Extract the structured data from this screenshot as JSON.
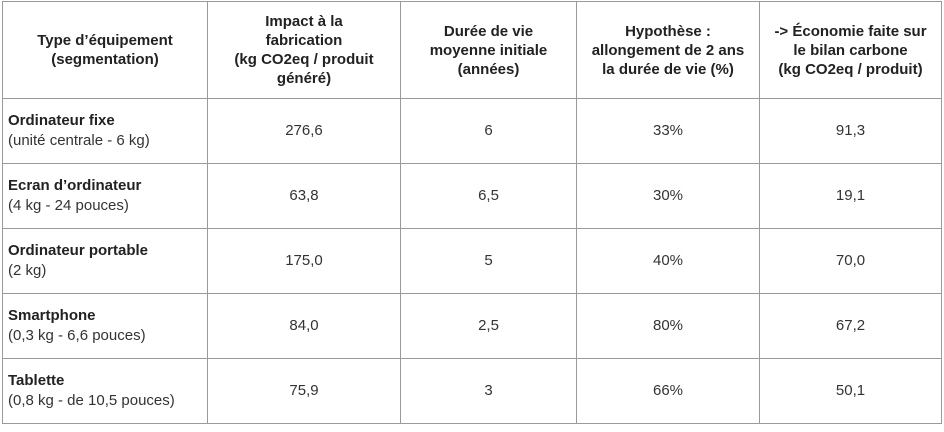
{
  "table": {
    "headers": [
      [
        "Type d’équipement",
        "(segmentation)"
      ],
      [
        "Impact à la",
        "fabrication",
        "(kg CO2eq / produit",
        "généré)"
      ],
      [
        "Durée de vie",
        "moyenne initiale",
        "(années)"
      ],
      [
        "Hypothèse :",
        "allongement de 2 ans",
        "la durée de vie (%)"
      ],
      [
        "-> Économie faite sur",
        "le bilan carbone",
        "(kg CO2eq / produit)"
      ]
    ],
    "rows": [
      {
        "name": "Ordinateur fixe",
        "spec": "(unité centrale - 6 kg)",
        "impact": "276,6",
        "lifespan": "6",
        "hypothesis": "33%",
        "saving": "91,3"
      },
      {
        "name": "Ecran d’ordinateur",
        "spec": "(4 kg - 24 pouces)",
        "impact": "63,8",
        "lifespan": "6,5",
        "hypothesis": "30%",
        "saving": "19,1"
      },
      {
        "name": "Ordinateur portable",
        "spec": "(2 kg)",
        "impact": "175,0",
        "lifespan": "5",
        "hypothesis": "40%",
        "saving": "70,0"
      },
      {
        "name": "Smartphone",
        "spec": "(0,3 kg - 6,6 pouces)",
        "impact": "84,0",
        "lifespan": "2,5",
        "hypothesis": "80%",
        "saving": "67,2"
      },
      {
        "name": "Tablette",
        "spec": "(0,8 kg - de 10,5 pouces)",
        "impact": "75,9",
        "lifespan": "3",
        "hypothesis": "66%",
        "saving": "50,1"
      }
    ]
  }
}
